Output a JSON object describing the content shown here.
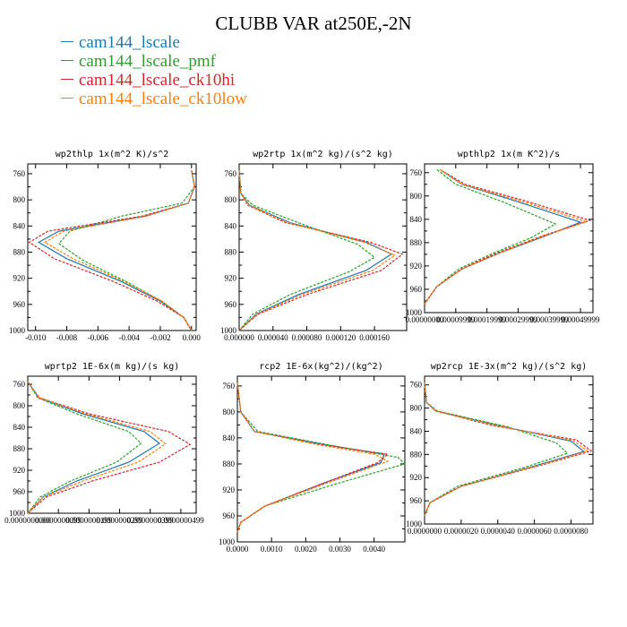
{
  "figure": {
    "title": "CLUBB VAR at250E,-2N",
    "colors": [
      "#1f77b4",
      "#2ca02c",
      "#d62728",
      "#ff7f0e"
    ]
  },
  "legend": [
    {
      "name": "cam144_lscale",
      "color": "#1f77b4"
    },
    {
      "name": "cam144_lscale_pmf",
      "color": "#2ca02c"
    },
    {
      "name": "cam144_lscale_ck10hi",
      "color": "#d62728"
    },
    {
      "name": "cam144_lscale_ck10low",
      "color": "#ff7f0e"
    }
  ],
  "chart_data": [
    {
      "type": "line",
      "title": "wp2thlp 1x(m^2 K)/s^2",
      "xlim": [
        -0.0105,
        0.0003
      ],
      "ylim": [
        745,
        1000
      ],
      "y_inverted": true,
      "xticks": [
        "-0.010",
        "-0.008",
        "-0.006",
        "-0.004",
        "-0.002",
        "0.000"
      ],
      "xtick_values": [
        -0.01,
        -0.008,
        -0.006,
        -0.004,
        -0.002,
        0.0
      ],
      "yticks": [
        760,
        800,
        840,
        880,
        920,
        960,
        1000
      ],
      "series": [
        {
          "name": "cam144_lscale",
          "x": [
            0.0,
            0.0002,
            -0.0002,
            -0.003,
            -0.0085,
            -0.0098,
            -0.008,
            -0.0045,
            -0.002,
            -0.0005,
            0.0
          ],
          "y": [
            755,
            780,
            805,
            825,
            848,
            865,
            890,
            925,
            955,
            980,
            1000
          ]
        },
        {
          "name": "cam144_lscale_pmf",
          "x": [
            0.0,
            0.0002,
            -0.0006,
            -0.0045,
            -0.0078,
            -0.0085,
            -0.007,
            -0.0042,
            -0.0019,
            -0.0005,
            0.0
          ],
          "y": [
            755,
            780,
            805,
            825,
            848,
            867,
            892,
            925,
            955,
            980,
            1000
          ]
        },
        {
          "name": "cam144_lscale_ck10hi",
          "x": [
            0.0,
            0.0002,
            -0.0002,
            -0.0032,
            -0.0092,
            -0.0104,
            -0.0088,
            -0.005,
            -0.0022,
            -0.0005,
            0.0
          ],
          "y": [
            755,
            780,
            805,
            825,
            848,
            865,
            890,
            925,
            955,
            980,
            1000
          ]
        },
        {
          "name": "cam144_lscale_ck10low",
          "x": [
            0.0,
            0.0002,
            -0.0002,
            -0.0029,
            -0.0082,
            -0.0094,
            -0.0076,
            -0.0043,
            -0.0019,
            -0.0005,
            0.0
          ],
          "y": [
            755,
            780,
            805,
            825,
            848,
            865,
            890,
            925,
            955,
            980,
            1000
          ]
        }
      ]
    },
    {
      "type": "line",
      "title": "wp2rtp 1x(m^2 kg)/(s^2 kg)",
      "xlim": [
        0,
        0.000198
      ],
      "ylim": [
        745,
        1000
      ],
      "y_inverted": true,
      "xticks": [
        "0.000000",
        "0.000040",
        "0.000080",
        "0.000120",
        "0.000160"
      ],
      "xtick_values": [
        0.0,
        4e-05,
        8e-05,
        0.00012,
        0.00016
      ],
      "yticks": [
        760,
        800,
        840,
        880,
        920,
        960,
        1000
      ],
      "series": [
        {
          "name": "cam144_lscale",
          "x": [
            0.0,
            2e-06,
            1.2e-05,
            6e-05,
            0.00015,
            0.00018,
            0.00015,
            7e-05,
            2e-05,
            0.0
          ],
          "y": [
            755,
            790,
            808,
            835,
            865,
            883,
            908,
            945,
            975,
            1000
          ]
        },
        {
          "name": "cam144_lscale_pmf",
          "x": [
            0.0,
            2e-06,
            1.6e-05,
            7e-05,
            0.00014,
            0.00016,
            0.00013,
            6e-05,
            1.6e-05,
            0.0
          ],
          "y": [
            755,
            790,
            808,
            835,
            868,
            888,
            910,
            945,
            975,
            1000
          ]
        },
        {
          "name": "cam144_lscale_ck10hi",
          "x": [
            0.0,
            2e-06,
            1e-05,
            5.5e-05,
            0.000155,
            0.000193,
            0.000168,
            8e-05,
            2.2e-05,
            0.0
          ],
          "y": [
            755,
            790,
            808,
            835,
            865,
            883,
            908,
            945,
            975,
            1000
          ]
        },
        {
          "name": "cam144_lscale_ck10low",
          "x": [
            0.0,
            2e-06,
            1.1e-05,
            5.8e-05,
            0.000148,
            0.000184,
            0.000158,
            7.4e-05,
            2.1e-05,
            0.0
          ],
          "y": [
            755,
            790,
            808,
            835,
            865,
            885,
            908,
            945,
            975,
            1000
          ]
        }
      ]
    },
    {
      "type": "line",
      "title": "wpthlp2 1x(m K^2)/s",
      "xlim": [
        0,
        0.00054
      ],
      "ylim": [
        745,
        1000
      ],
      "y_inverted": true,
      "xticks": [
        "0.00000000",
        "0.00009999",
        "0.00019999",
        "0.00029999",
        "0.00039999",
        "0.00049999"
      ],
      "xtick_values": [
        0.0,
        0.0001,
        0.0002,
        0.0003,
        0.0004,
        0.0005
      ],
      "yticks": [
        760,
        800,
        840,
        880,
        920,
        960,
        1000
      ],
      "series": [
        {
          "name": "cam144_lscale",
          "x": [
            5e-05,
            0.00012,
            0.0003,
            0.0005,
            0.00038,
            0.00024,
            0.00012,
            4e-05,
            0.0
          ],
          "y": [
            755,
            780,
            810,
            845,
            870,
            898,
            925,
            955,
            985
          ]
        },
        {
          "name": "cam144_lscale_pmf",
          "x": [
            4e-05,
            0.0001,
            0.00026,
            0.00042,
            0.00034,
            0.00022,
            0.00011,
            4e-05,
            0.0
          ],
          "y": [
            755,
            780,
            812,
            848,
            872,
            898,
            925,
            955,
            985
          ]
        },
        {
          "name": "cam144_lscale_ck10hi",
          "x": [
            5e-05,
            0.00013,
            0.00032,
            0.00053,
            0.00038,
            0.00023,
            0.00012,
            4e-05,
            0.0
          ],
          "y": [
            755,
            780,
            808,
            842,
            868,
            898,
            925,
            955,
            985
          ]
        },
        {
          "name": "cam144_lscale_ck10low",
          "x": [
            5e-05,
            0.00012,
            0.00031,
            0.00052,
            0.00038,
            0.00024,
            0.00012,
            4e-05,
            0.0
          ],
          "y": [
            755,
            780,
            809,
            844,
            869,
            898,
            925,
            955,
            985
          ]
        }
      ]
    },
    {
      "type": "line",
      "title": "wprtp2 1E-6x(m kg)/(s kg)",
      "xlim": [
        0,
        5.5e-08
      ],
      "ylim": [
        745,
        1000
      ],
      "y_inverted": true,
      "xticks": [
        "0.0000000000",
        "0.0000000099",
        "0.0000000199",
        "0.0000000299",
        "0.0000000399",
        "0.0000000499"
      ],
      "xtick_values": [
        0.0,
        1e-08,
        2e-08,
        3e-08,
        4e-08,
        5e-08
      ],
      "yticks": [
        760,
        800,
        840,
        880,
        920,
        960,
        1000
      ],
      "series": [
        {
          "name": "cam144_lscale",
          "x": [
            0.0,
            3.5e-09,
            1.8e-08,
            3.8e-08,
            4.3e-08,
            3.3e-08,
            1.6e-08,
            5e-09,
            0.0
          ],
          "y": [
            755,
            785,
            815,
            848,
            870,
            905,
            940,
            970,
            1000
          ]
        },
        {
          "name": "cam144_lscale_pmf",
          "x": [
            0.0,
            3.2e-09,
            1.6e-08,
            3.3e-08,
            3.7e-08,
            2.9e-08,
            1.4e-08,
            4e-09,
            0.0
          ],
          "y": [
            755,
            785,
            815,
            848,
            870,
            905,
            940,
            970,
            1000
          ]
        },
        {
          "name": "cam144_lscale_ck10hi",
          "x": [
            0.0,
            3.8e-09,
            2e-08,
            4.6e-08,
            5.3e-08,
            4.3e-08,
            2.1e-08,
            6e-09,
            0.0
          ],
          "y": [
            755,
            785,
            815,
            848,
            872,
            905,
            940,
            970,
            1000
          ]
        },
        {
          "name": "cam144_lscale_ck10low",
          "x": [
            0.0,
            3.6e-09,
            1.9e-08,
            4e-08,
            4.5e-08,
            3.6e-08,
            1.8e-08,
            5e-09,
            0.0
          ],
          "y": [
            755,
            785,
            815,
            848,
            871,
            905,
            940,
            970,
            1000
          ]
        }
      ]
    },
    {
      "type": "line",
      "title": "rcp2 1E-6x(kg^2)/(kg^2)",
      "xlim": [
        0,
        0.0049
      ],
      "ylim": [
        745,
        1000
      ],
      "y_inverted": true,
      "xticks": [
        "0.0000",
        "0.0010",
        "0.0020",
        "0.0030",
        "0.0040"
      ],
      "xtick_values": [
        0.0,
        0.001,
        0.002,
        0.003,
        0.004
      ],
      "yticks": [
        760,
        800,
        840,
        880,
        920,
        960,
        1000
      ],
      "series": [
        {
          "name": "cam144_lscale",
          "x": [
            0.0,
            0.0001,
            0.0005,
            0.0025,
            0.0043,
            0.0042,
            0.0025,
            0.0008,
            0.0001,
            0.0
          ],
          "y": [
            755,
            800,
            830,
            850,
            865,
            878,
            910,
            945,
            970,
            985
          ]
        },
        {
          "name": "cam144_lscale_pmf",
          "x": [
            0.0,
            0.0001,
            0.0006,
            0.0028,
            0.0047,
            0.0049,
            0.0028,
            0.0008,
            0.0001,
            0.0
          ],
          "y": [
            755,
            800,
            830,
            852,
            870,
            880,
            912,
            945,
            970,
            985
          ]
        },
        {
          "name": "cam144_lscale_ck10hi",
          "x": [
            0.0,
            0.0001,
            0.0005,
            0.0024,
            0.0044,
            0.0041,
            0.0024,
            0.0008,
            0.0001,
            0.0
          ],
          "y": [
            755,
            800,
            830,
            850,
            865,
            878,
            912,
            945,
            970,
            985
          ]
        },
        {
          "name": "cam144_lscale_ck10low",
          "x": [
            0.0,
            0.0001,
            0.0005,
            0.0023,
            0.004,
            0.0044,
            0.0026,
            0.0008,
            0.0001,
            0.0
          ],
          "y": [
            755,
            800,
            830,
            850,
            865,
            876,
            910,
            945,
            970,
            985
          ]
        }
      ]
    },
    {
      "type": "line",
      "title": "wp2rcp 1E-3x(m^2 kg)/(s^2 kg)",
      "xlim": [
        0,
        9.2e-06
      ],
      "ylim": [
        745,
        1000
      ],
      "y_inverted": true,
      "xticks": [
        "0.0000000",
        "0.0000020",
        "0.0000040",
        "0.0000060",
        "0.0000080"
      ],
      "xtick_values": [
        0.0,
        2e-06,
        4e-06,
        6e-06,
        8e-06
      ],
      "yticks": [
        760,
        800,
        840,
        880,
        920,
        960,
        1000
      ],
      "series": [
        {
          "name": "cam144_lscale",
          "x": [
            0.0,
            1e-07,
            6e-07,
            4e-06,
            8e-06,
            8.7e-06,
            6e-06,
            2e-06,
            3e-07,
            0.0
          ],
          "y": [
            755,
            790,
            805,
            830,
            857,
            875,
            900,
            935,
            963,
            985
          ]
        },
        {
          "name": "cam144_lscale_pmf",
          "x": [
            0.0,
            1e-07,
            7e-07,
            4.5e-06,
            7.2e-06,
            7.8e-06,
            5.5e-06,
            1.8e-06,
            3e-07,
            0.0
          ],
          "y": [
            755,
            790,
            805,
            832,
            860,
            878,
            902,
            935,
            963,
            985
          ]
        },
        {
          "name": "cam144_lscale_ck10hi",
          "x": [
            0.0,
            1e-07,
            6e-07,
            3.7e-06,
            8.3e-06,
            9.1e-06,
            6.2e-06,
            2e-06,
            3e-07,
            0.0
          ],
          "y": [
            755,
            790,
            805,
            830,
            855,
            874,
            900,
            935,
            963,
            985
          ]
        },
        {
          "name": "cam144_lscale_ck10low",
          "x": [
            0.0,
            1e-07,
            6e-07,
            3.9e-06,
            8.1e-06,
            8.9e-06,
            6.1e-06,
            2e-06,
            3e-07,
            0.0
          ],
          "y": [
            755,
            790,
            805,
            830,
            856,
            874,
            900,
            935,
            963,
            985
          ]
        }
      ]
    }
  ]
}
